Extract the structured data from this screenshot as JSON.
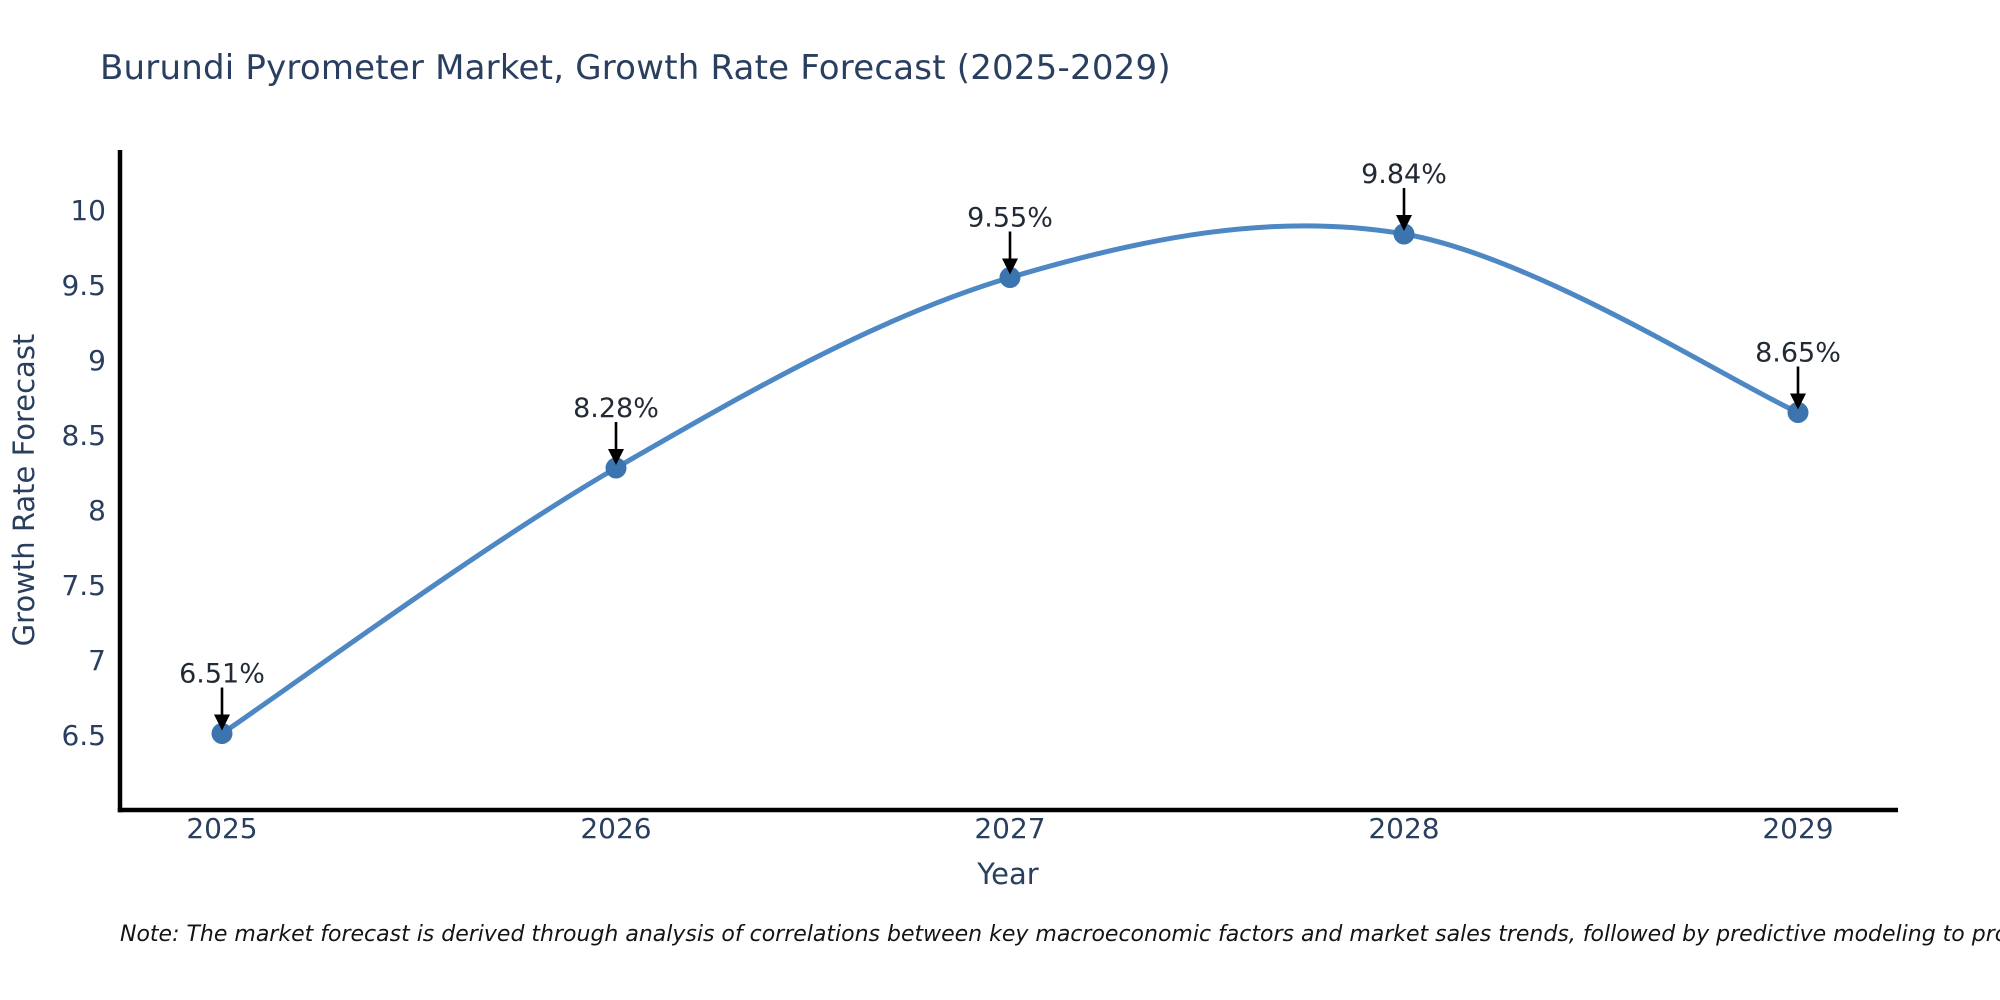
{
  "title": "Burundi Pyrometer Market, Growth Rate Forecast (2025-2029)",
  "note": "Note: The market forecast is derived through analysis of correlations between key macroeconomic factors and market sales trends, followed by predictive modeling to project future sales",
  "colors": {
    "line": "#4d87c4",
    "marker": "#3b74ae",
    "axis": "#000000",
    "text": "#2a3f5f",
    "annotation_text": "#222a35",
    "arrow": "#000000",
    "note_text": "#141414",
    "background": "#ffffff"
  },
  "chart_data": {
    "type": "line",
    "title": "Burundi Pyrometer Market, Growth Rate Forecast (2025-2029)",
    "xlabel": "Year",
    "ylabel": "Growth Rate Forecast",
    "x": [
      2025,
      2026,
      2027,
      2028,
      2029
    ],
    "y": [
      6.51,
      8.28,
      9.55,
      9.84,
      8.65
    ],
    "point_labels": [
      "6.51%",
      "8.28%",
      "9.55%",
      "9.84%",
      "8.65%"
    ],
    "x_tick_labels": [
      "2025",
      "2026",
      "2027",
      "2028",
      "2029"
    ],
    "y_ticks": [
      6.5,
      7,
      7.5,
      8,
      8.5,
      9,
      9.5,
      10
    ],
    "y_tick_labels": [
      "6.5",
      "7",
      "7.5",
      "8",
      "8.5",
      "9",
      "9.5",
      "10"
    ],
    "ylim": [
      6.0,
      10.4
    ],
    "line_shape": "spline",
    "grid": false,
    "legend": null,
    "annotations_have_arrows": true
  }
}
